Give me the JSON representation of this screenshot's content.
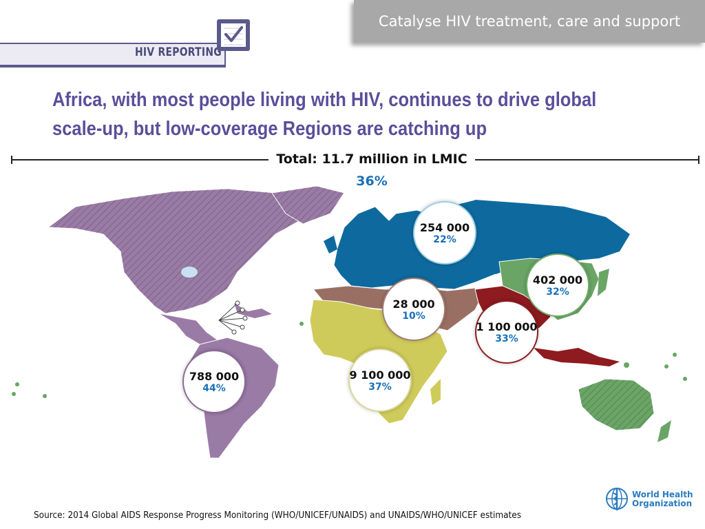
{
  "header": {
    "tag": "Catalyse HIV treatment, care and support"
  },
  "logo": {
    "text": "HIV REPORTING"
  },
  "title": "Africa, with most people living with HIV, continues to drive global scale-up, but low-coverage Regions are catching up",
  "total": {
    "label": "Total: 11.7 million in LMIC",
    "pct": "36%"
  },
  "regions": [
    {
      "name": "americas",
      "value": "788 000",
      "pct": "44%",
      "ring": "#8b6a96"
    },
    {
      "name": "africa",
      "value": "9 100 000",
      "pct": "37%",
      "ring": "#d8d79a"
    },
    {
      "name": "eastern-mediterranean",
      "value": "28 000",
      "pct": "10%",
      "ring": "#a67f74"
    },
    {
      "name": "europe",
      "value": "254 000",
      "pct": "22%",
      "ring": "#9ccfe8"
    },
    {
      "name": "south-east-asia",
      "value": "1 100 000",
      "pct": "33%",
      "ring": "#8b1e22"
    },
    {
      "name": "western-pacific",
      "value": "402 000",
      "pct": "32%",
      "ring": "#6fae6a"
    }
  ],
  "colors": {
    "americas": "#9a7ba6",
    "africa": "#cfcb5a",
    "eastern_mediterranean": "#9a6f63",
    "europe": "#0e6a9e",
    "south_east_asia": "#8e1b1f",
    "western_pacific": "#6aa566",
    "title": "#5a4f9a",
    "accent": "#1a70b8"
  },
  "source": "Source: 2014 Global AIDS Response Progress Monitoring (WHO/UNICEF/UNAIDS) and UNAIDS/WHO/UNICEF estimates",
  "who": {
    "line1": "World Health",
    "line2": "Organization"
  }
}
